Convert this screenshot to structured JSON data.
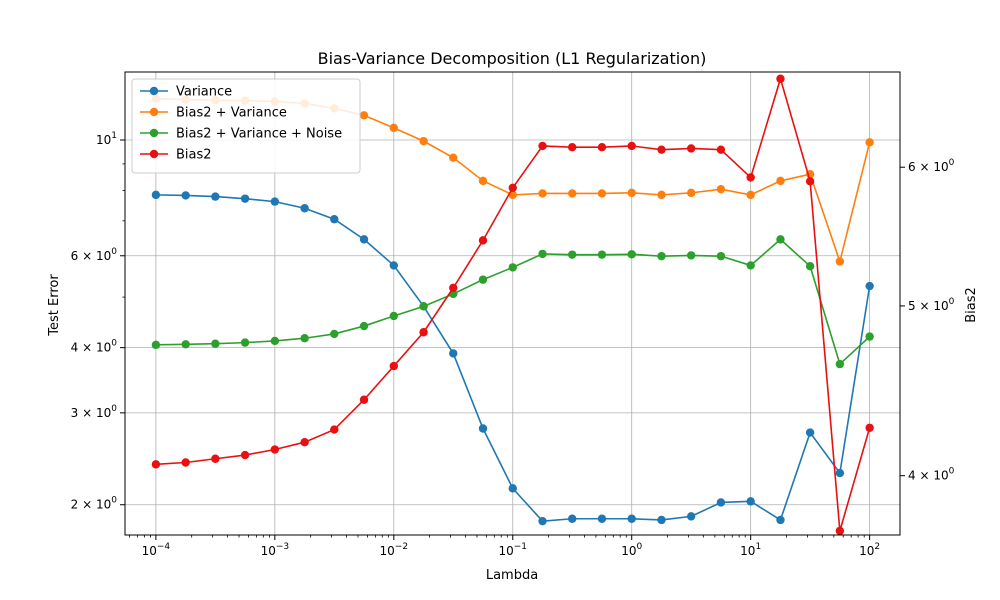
{
  "chart_data": {
    "type": "line",
    "title": "Bias-Variance Decomposition (L1 Regularization)",
    "xlabel": "Lambda",
    "ylabel": "Test Error",
    "ylabel_right": "Bias2",
    "x_scale": "log",
    "y_scale": "log",
    "y_right_scale": "log",
    "xlim": [
      5.5e-05,
      180
    ],
    "ylim": [
      1.75,
      13.5
    ],
    "ylim_right": [
      3.7,
      6.8
    ],
    "grid": true,
    "legend_position": "top-left",
    "x_ticks": [
      {
        "value": 0.0001,
        "base": "10",
        "exp": "−4"
      },
      {
        "value": 0.001,
        "base": "10",
        "exp": "−3"
      },
      {
        "value": 0.01,
        "base": "10",
        "exp": "−2"
      },
      {
        "value": 0.1,
        "base": "10",
        "exp": "−1"
      },
      {
        "value": 1,
        "base": "10",
        "exp": "0"
      },
      {
        "value": 10,
        "base": "10",
        "exp": "1"
      },
      {
        "value": 100,
        "base": "10",
        "exp": "2"
      }
    ],
    "y_ticks": [
      {
        "value": 2,
        "mant": "2",
        "base": "10",
        "exp": "0",
        "form": "mult"
      },
      {
        "value": 3,
        "mant": "3",
        "base": "10",
        "exp": "0",
        "form": "mult"
      },
      {
        "value": 4,
        "mant": "4",
        "base": "10",
        "exp": "0",
        "form": "mult"
      },
      {
        "value": 6,
        "mant": "6",
        "base": "10",
        "exp": "0",
        "form": "mult"
      },
      {
        "value": 10,
        "mant": "",
        "base": "10",
        "exp": "1",
        "form": "pow"
      }
    ],
    "y_minor_ticks": [
      5,
      7,
      8,
      9
    ],
    "y_right_ticks": [
      {
        "value": 4,
        "mant": "4",
        "base": "10",
        "exp": "0"
      },
      {
        "value": 5,
        "mant": "5",
        "base": "10",
        "exp": "0"
      },
      {
        "value": 6,
        "mant": "6",
        "base": "10",
        "exp": "0"
      }
    ],
    "x": [
      0.0001,
      0.000178,
      0.000316,
      0.000562,
      0.001,
      0.00178,
      0.00316,
      0.00562,
      0.01,
      0.0178,
      0.0316,
      0.0562,
      0.1,
      0.178,
      0.316,
      0.562,
      1,
      1.78,
      3.16,
      5.62,
      10,
      17.8,
      31.6,
      56.2,
      100
    ],
    "series": [
      {
        "name": "Variance",
        "color": "#1f77b4",
        "axis": "left",
        "values": [
          7.85,
          7.83,
          7.79,
          7.72,
          7.62,
          7.4,
          7.05,
          6.45,
          5.75,
          4.8,
          3.9,
          2.8,
          2.15,
          1.86,
          1.88,
          1.88,
          1.88,
          1.87,
          1.9,
          2.02,
          2.03,
          1.87,
          2.75,
          2.3,
          5.25
        ]
      },
      {
        "name": "Bias2 + Variance",
        "color": "#ff7f0e",
        "axis": "left",
        "values": [
          12.0,
          11.95,
          11.92,
          11.9,
          11.85,
          11.75,
          11.5,
          11.15,
          10.55,
          9.95,
          9.25,
          8.35,
          7.85,
          7.9,
          7.9,
          7.9,
          7.92,
          7.85,
          7.92,
          8.05,
          7.85,
          8.35,
          8.6,
          5.85,
          9.9
        ]
      },
      {
        "name": "Bias2 + Variance + Noise",
        "color": "#2ca02c",
        "axis": "left",
        "values": [
          4.05,
          4.06,
          4.07,
          4.09,
          4.12,
          4.17,
          4.25,
          4.4,
          4.6,
          4.8,
          5.07,
          5.4,
          5.7,
          6.05,
          6.03,
          6.03,
          6.04,
          5.99,
          6.01,
          5.99,
          5.75,
          6.45,
          5.73,
          3.72,
          4.2
        ]
      },
      {
        "name": "Bias2",
        "color": "#e81010",
        "axis": "right",
        "values": [
          4.06,
          4.07,
          4.09,
          4.11,
          4.14,
          4.18,
          4.25,
          4.42,
          4.62,
          4.83,
          5.12,
          5.45,
          5.84,
          6.17,
          6.16,
          6.16,
          6.17,
          6.14,
          6.15,
          6.14,
          5.92,
          6.74,
          5.89,
          3.72,
          4.26
        ]
      }
    ]
  }
}
